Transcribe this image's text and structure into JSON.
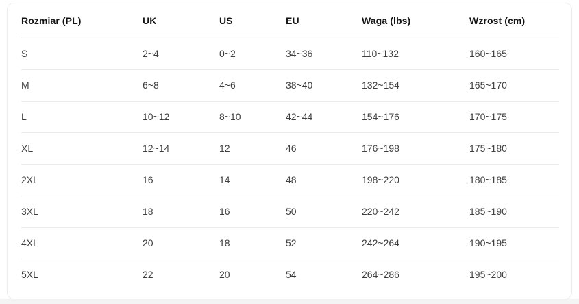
{
  "table": {
    "columns": [
      "Rozmiar (PL)",
      "UK",
      "US",
      "EU",
      "Waga (lbs)",
      "Wzrost (cm)"
    ],
    "rows": [
      [
        "S",
        "2~4",
        "0~2",
        "34~36",
        "110~132",
        "160~165"
      ],
      [
        "M",
        "6~8",
        "4~6",
        "38~40",
        "132~154",
        "165~170"
      ],
      [
        "L",
        "10~12",
        "8~10",
        "42~44",
        "154~176",
        "170~175"
      ],
      [
        "XL",
        "12~14",
        "12",
        "46",
        "176~198",
        "175~180"
      ],
      [
        "2XL",
        "16",
        "14",
        "48",
        "198~220",
        "180~185"
      ],
      [
        "3XL",
        "18",
        "16",
        "50",
        "220~242",
        "185~190"
      ],
      [
        "4XL",
        "20",
        "18",
        "52",
        "242~264",
        "190~195"
      ],
      [
        "5XL",
        "22",
        "20",
        "54",
        "264~286",
        "195~200"
      ]
    ]
  },
  "colors": {
    "card_background": "#ffffff",
    "card_border": "#ededed",
    "header_divider": "#d8d8d8",
    "row_divider": "#eaeaea",
    "header_text": "#141414",
    "cell_text": "#3f3f3f",
    "page_strip": "#f4f4f4"
  }
}
